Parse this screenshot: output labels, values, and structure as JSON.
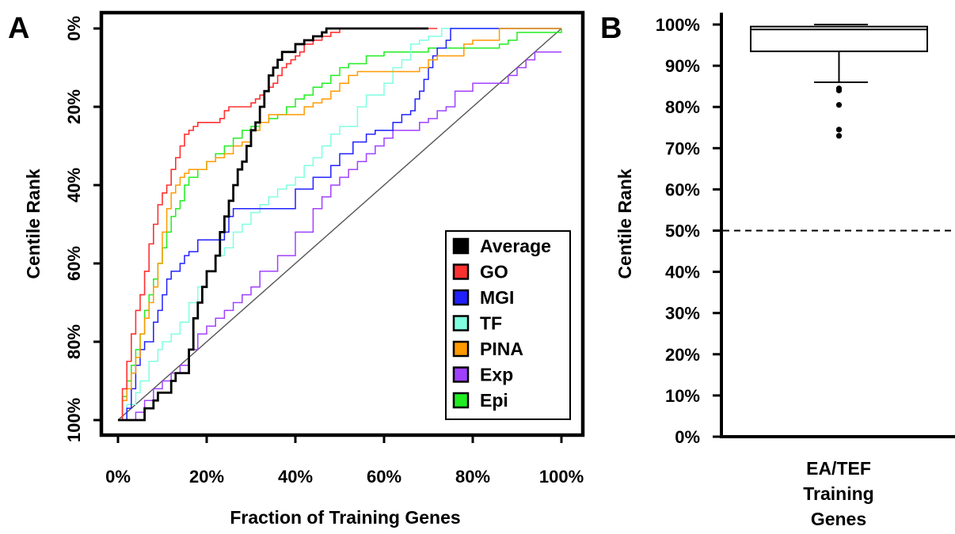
{
  "chart_data": [
    {
      "panel": "A",
      "type": "line",
      "xlabel": "Fraction of Training Genes",
      "ylabel": "Centile Rank",
      "xlim": [
        0,
        100
      ],
      "ylim": [
        0,
        100
      ],
      "y_inverted": true,
      "xticks": [
        "0%",
        "20%",
        "40%",
        "60%",
        "80%",
        "100%"
      ],
      "yticks": [
        "0%",
        "20%",
        "40%",
        "60%",
        "80%",
        "100%"
      ],
      "legend_position": "bottom-right",
      "grid": false,
      "diagonal": [
        [
          0,
          100
        ],
        [
          100,
          0
        ]
      ],
      "series": [
        {
          "name": "Average",
          "color": "#000000",
          "width": 2.8,
          "x": [
            0,
            1,
            5,
            6,
            8,
            9,
            12,
            13,
            16,
            17,
            18,
            19,
            20,
            22,
            23,
            24,
            25,
            26,
            27,
            28,
            29,
            30,
            31,
            32,
            33,
            34,
            35,
            36,
            37,
            38,
            40,
            42,
            44,
            46,
            47,
            50,
            70
          ],
          "y": [
            100,
            100,
            100,
            97,
            95,
            93,
            90,
            88,
            82,
            74,
            70,
            66,
            62,
            58,
            52,
            48,
            44,
            40,
            36,
            34,
            30,
            26,
            24,
            20,
            16,
            12,
            10,
            8,
            6,
            6,
            4,
            3,
            2,
            1,
            0,
            0,
            0
          ]
        },
        {
          "name": "GO",
          "color": "#ff3030",
          "width": 1.6,
          "x": [
            0,
            1,
            2,
            3,
            4,
            5,
            6,
            7,
            8,
            9,
            10,
            11,
            12,
            13,
            14,
            15,
            16,
            17,
            18,
            22,
            23,
            24,
            25,
            30,
            31,
            32,
            33,
            34,
            35,
            36,
            37,
            38,
            39,
            40,
            41,
            42,
            44,
            46,
            48,
            50,
            72
          ],
          "y": [
            100,
            92,
            85,
            78,
            72,
            68,
            62,
            55,
            50,
            45,
            42,
            40,
            36,
            33,
            30,
            27,
            26,
            25,
            24,
            24,
            23,
            21,
            20,
            19,
            18,
            17,
            16,
            15,
            14,
            12,
            10,
            9,
            8,
            7,
            6,
            4,
            3,
            2,
            1,
            0,
            0
          ]
        },
        {
          "name": "MGI",
          "color": "#2020ff",
          "width": 1.5,
          "x": [
            0,
            2,
            3,
            4,
            5,
            6,
            8,
            9,
            10,
            11,
            12,
            14,
            15,
            16,
            18,
            20,
            24,
            25,
            26,
            30,
            40,
            44,
            48,
            50,
            53,
            56,
            58,
            60,
            62,
            64,
            66,
            67,
            68,
            69,
            70,
            71,
            72,
            74,
            75,
            80,
            100
          ],
          "y": [
            100,
            97,
            92,
            86,
            82,
            80,
            75,
            72,
            68,
            64,
            62,
            60,
            58,
            57,
            54,
            54,
            52,
            48,
            46,
            46,
            41,
            38,
            35,
            32,
            29,
            27,
            26,
            26,
            24,
            22,
            21,
            18,
            16,
            13,
            10,
            7,
            5,
            3,
            0,
            0,
            0
          ]
        },
        {
          "name": "TF",
          "color": "#80ffe0",
          "width": 1.5,
          "x": [
            0,
            2,
            4,
            5,
            7,
            9,
            10,
            12,
            14,
            16,
            18,
            20,
            22,
            24,
            26,
            28,
            30,
            32,
            34,
            36,
            38,
            40,
            42,
            44,
            46,
            48,
            50,
            54,
            56,
            60,
            62,
            64,
            66,
            68,
            70,
            73,
            90,
            100
          ],
          "y": [
            100,
            96,
            93,
            90,
            85,
            82,
            80,
            78,
            75,
            70,
            66,
            62,
            58,
            56,
            52,
            50,
            47,
            45,
            43,
            41,
            40,
            38,
            35,
            33,
            30,
            27,
            25,
            20,
            17,
            14,
            10,
            8,
            4,
            3,
            2,
            0,
            0,
            0
          ]
        },
        {
          "name": "PINA",
          "color": "#ff9a00",
          "width": 1.5,
          "x": [
            0,
            1,
            2,
            3,
            4,
            5,
            6,
            7,
            8,
            9,
            10,
            11,
            12,
            13,
            14,
            15,
            16,
            18,
            20,
            22,
            24,
            26,
            28,
            30,
            32,
            34,
            36,
            38,
            40,
            42,
            44,
            46,
            48,
            50,
            52,
            54,
            58,
            64,
            68,
            70,
            72,
            78,
            80,
            86,
            100
          ],
          "y": [
            100,
            95,
            92,
            88,
            84,
            78,
            74,
            70,
            66,
            60,
            52,
            46,
            42,
            40,
            38,
            37,
            36,
            36,
            34,
            33,
            32,
            30,
            29,
            26,
            24,
            22,
            22,
            22,
            22,
            20,
            19,
            18,
            16,
            14,
            12,
            11,
            11,
            11,
            10,
            8,
            7,
            4,
            3,
            0,
            0
          ]
        },
        {
          "name": "Exp",
          "color": "#a040ff",
          "width": 1.5,
          "x": [
            0,
            2,
            4,
            6,
            8,
            10,
            12,
            14,
            16,
            18,
            20,
            22,
            24,
            26,
            28,
            30,
            32,
            36,
            40,
            44,
            46,
            48,
            50,
            52,
            54,
            56,
            58,
            60,
            62,
            64,
            66,
            68,
            70,
            72,
            74,
            76,
            80,
            84,
            88,
            90,
            92,
            94,
            96,
            98,
            100
          ],
          "y": [
            100,
            100,
            98,
            95,
            92,
            90,
            88,
            86,
            82,
            78,
            76,
            74,
            72,
            70,
            68,
            66,
            62,
            58,
            52,
            46,
            43,
            40,
            38,
            36,
            34,
            32,
            30,
            28,
            26,
            26,
            26,
            24,
            23,
            21,
            20,
            16,
            14,
            14,
            12,
            10,
            8,
            6,
            6,
            6,
            6
          ]
        },
        {
          "name": "Epi",
          "color": "#20ee20",
          "width": 1.5,
          "x": [
            0,
            1,
            2,
            3,
            4,
            5,
            6,
            7,
            8,
            9,
            10,
            11,
            12,
            13,
            14,
            15,
            16,
            18,
            20,
            22,
            24,
            26,
            28,
            30,
            32,
            34,
            36,
            38,
            40,
            42,
            44,
            46,
            48,
            50,
            52,
            56,
            60,
            64,
            66,
            68,
            70,
            74,
            76,
            80,
            84,
            86,
            88,
            90,
            100
          ],
          "y": [
            100,
            94,
            90,
            86,
            82,
            78,
            72,
            68,
            64,
            60,
            56,
            52,
            48,
            46,
            44,
            40,
            38,
            36,
            34,
            32,
            30,
            28,
            26,
            25,
            24,
            23,
            22,
            20,
            18,
            17,
            15,
            14,
            12,
            10,
            9,
            7,
            6,
            6,
            6,
            6,
            5,
            5,
            5,
            5,
            5,
            4,
            3,
            1,
            0
          ]
        }
      ]
    },
    {
      "panel": "B",
      "type": "box",
      "xlabel_lines": [
        "EA/TEF",
        "Training",
        "Genes"
      ],
      "ylabel": "Centile Rank",
      "ylim": [
        0,
        100
      ],
      "yticks": [
        "0%",
        "10%",
        "20%",
        "30%",
        "40%",
        "50%",
        "60%",
        "70%",
        "80%",
        "90%",
        "100%"
      ],
      "reference_line": 50,
      "box": {
        "min": 86,
        "q1": 93.5,
        "median": 98.8,
        "q3": 99.5,
        "max": 100
      },
      "outliers": [
        84.5,
        84,
        80.5,
        74.5,
        73
      ]
    }
  ]
}
